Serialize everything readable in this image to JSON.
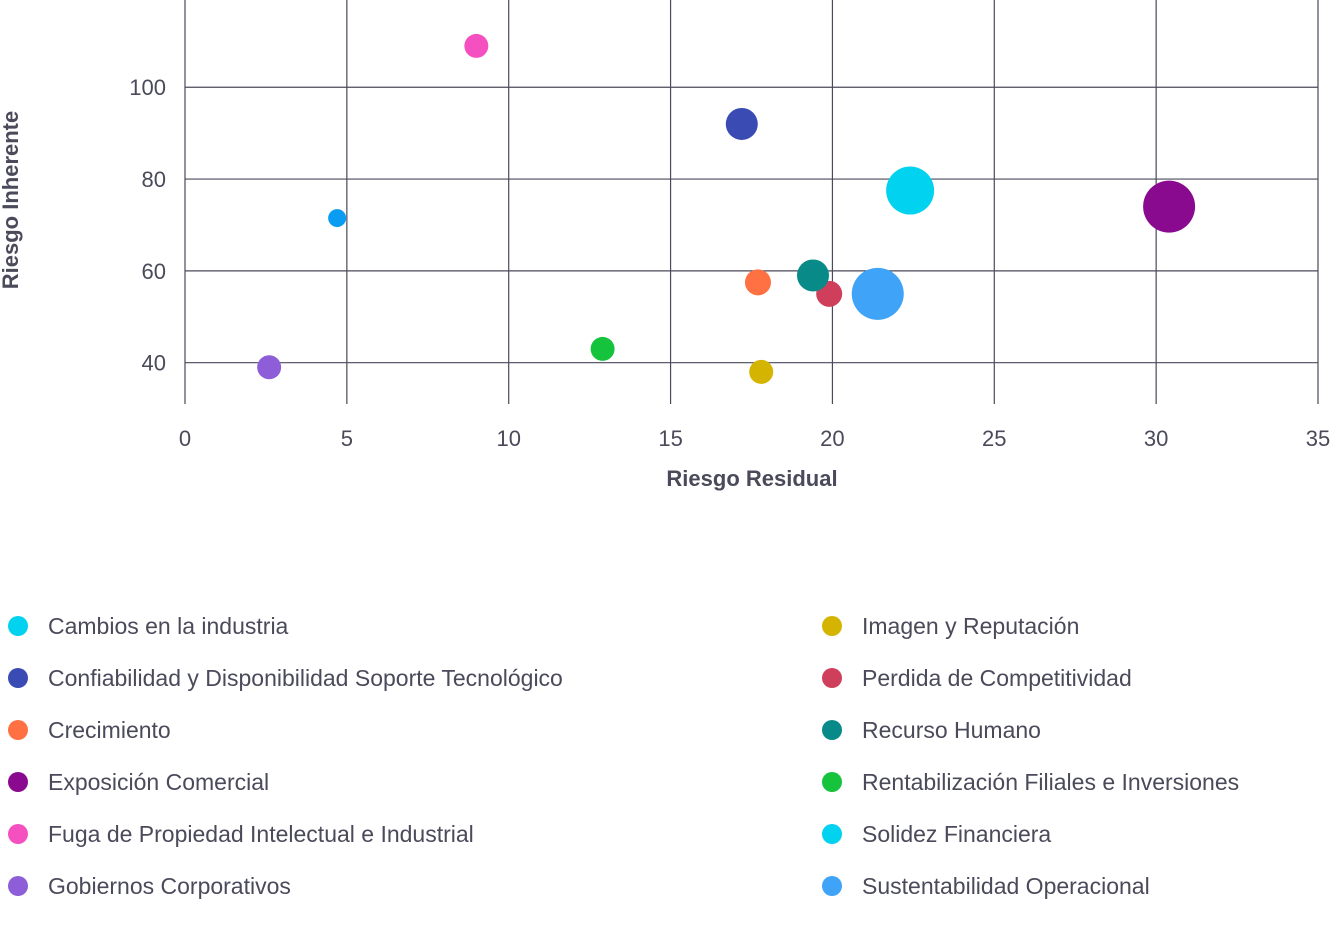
{
  "chart_data": {
    "type": "scatter",
    "title": "",
    "xlabel": "Riesgo Residual",
    "ylabel": "Riesgo Inherente",
    "xlim": [
      0,
      35
    ],
    "ylim": [
      31,
      119
    ],
    "x_ticks": [
      "0",
      "5",
      "10",
      "15",
      "20",
      "25",
      "30",
      "35"
    ],
    "y_ticks": [
      "40",
      "60",
      "80",
      "100"
    ],
    "grid": true,
    "legend_position": "bottom",
    "series": [
      {
        "name": "Cambios en la industria",
        "color": "#00d2f0",
        "points": []
      },
      {
        "name": "Confiabilidad y Disponibilidad Soporte Tecnológico",
        "color": "#3a4bb3",
        "points": [
          {
            "x": 17.2,
            "y": 92,
            "r": 16
          }
        ]
      },
      {
        "name": "Crecimiento",
        "color": "#ff7043",
        "points": [
          {
            "x": 17.7,
            "y": 57.5,
            "r": 13
          }
        ]
      },
      {
        "name": "Exposición Comercial",
        "color": "#8a0a8f",
        "points": [
          {
            "x": 30.4,
            "y": 74,
            "r": 26
          }
        ]
      },
      {
        "name": "Fuga de Propiedad Intelectual e Industrial",
        "color": "#f550c0",
        "points": [
          {
            "x": 9.0,
            "y": 109,
            "r": 12
          }
        ]
      },
      {
        "name": "Gobiernos Corporativos",
        "color": "#8e5ed8",
        "points": [
          {
            "x": 2.6,
            "y": 39,
            "r": 12
          }
        ]
      },
      {
        "name": "Imagen y Reputación",
        "color": "#d4b400",
        "points": [
          {
            "x": 17.8,
            "y": 38,
            "r": 12
          }
        ]
      },
      {
        "name": "Perdida de Competitividad",
        "color": "#cf3f5c",
        "points": [
          {
            "x": 19.9,
            "y": 55,
            "r": 13
          }
        ]
      },
      {
        "name": "Recurso Humano",
        "color": "#078a88",
        "points": [
          {
            "x": 19.4,
            "y": 59,
            "r": 16
          }
        ]
      },
      {
        "name": "Rentabilización Filiales e Inversiones",
        "color": "#16c33c",
        "points": [
          {
            "x": 12.9,
            "y": 43,
            "r": 12
          }
        ]
      },
      {
        "name": "Solidez Financiera",
        "color": "#00d2f0",
        "points": [
          {
            "x": 22.4,
            "y": 77.5,
            "r": 24
          }
        ]
      },
      {
        "name": "Sustentabilidad Operacional",
        "color": "#3fa3f7",
        "points": [
          {
            "x": 21.4,
            "y": 55,
            "r": 26
          }
        ]
      },
      {
        "name": "",
        "color": "#0a9cf2",
        "points": [
          {
            "x": 4.7,
            "y": 71.5,
            "r": 9
          }
        ]
      }
    ],
    "legend_left": [
      "Cambios en la industria",
      "Confiabilidad y Disponibilidad Soporte Tecnológico",
      "Crecimiento",
      "Exposición Comercial",
      "Fuga de Propiedad Intelectual e Industrial",
      "Gobiernos Corporativos"
    ],
    "legend_right": [
      "Imagen y Reputación",
      "Perdida de Competitividad",
      "Recurso Humano",
      "Rentabilización Filiales e Inversiones",
      "Solidez Financiera",
      "Sustentabilidad Operacional"
    ]
  }
}
